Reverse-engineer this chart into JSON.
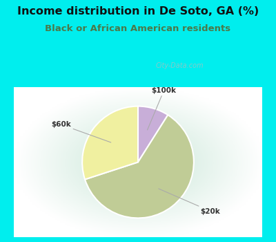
{
  "title": "Income distribution in De Soto, GA (%)",
  "subtitle": "Black or African American residents",
  "title_color": "#111111",
  "subtitle_color": "#4a7a4a",
  "title_fontsize": 11.5,
  "subtitle_fontsize": 9.5,
  "background_top": "#00EEEE",
  "slices": [
    {
      "label": "$100k",
      "value": 9,
      "color": "#c8aed8"
    },
    {
      "label": "$20k",
      "value": 61,
      "color": "#c0cc96"
    },
    {
      "label": "$60k",
      "value": 30,
      "color": "#f0f0a0"
    }
  ],
  "startangle": 90,
  "watermark": "City-Data.com"
}
